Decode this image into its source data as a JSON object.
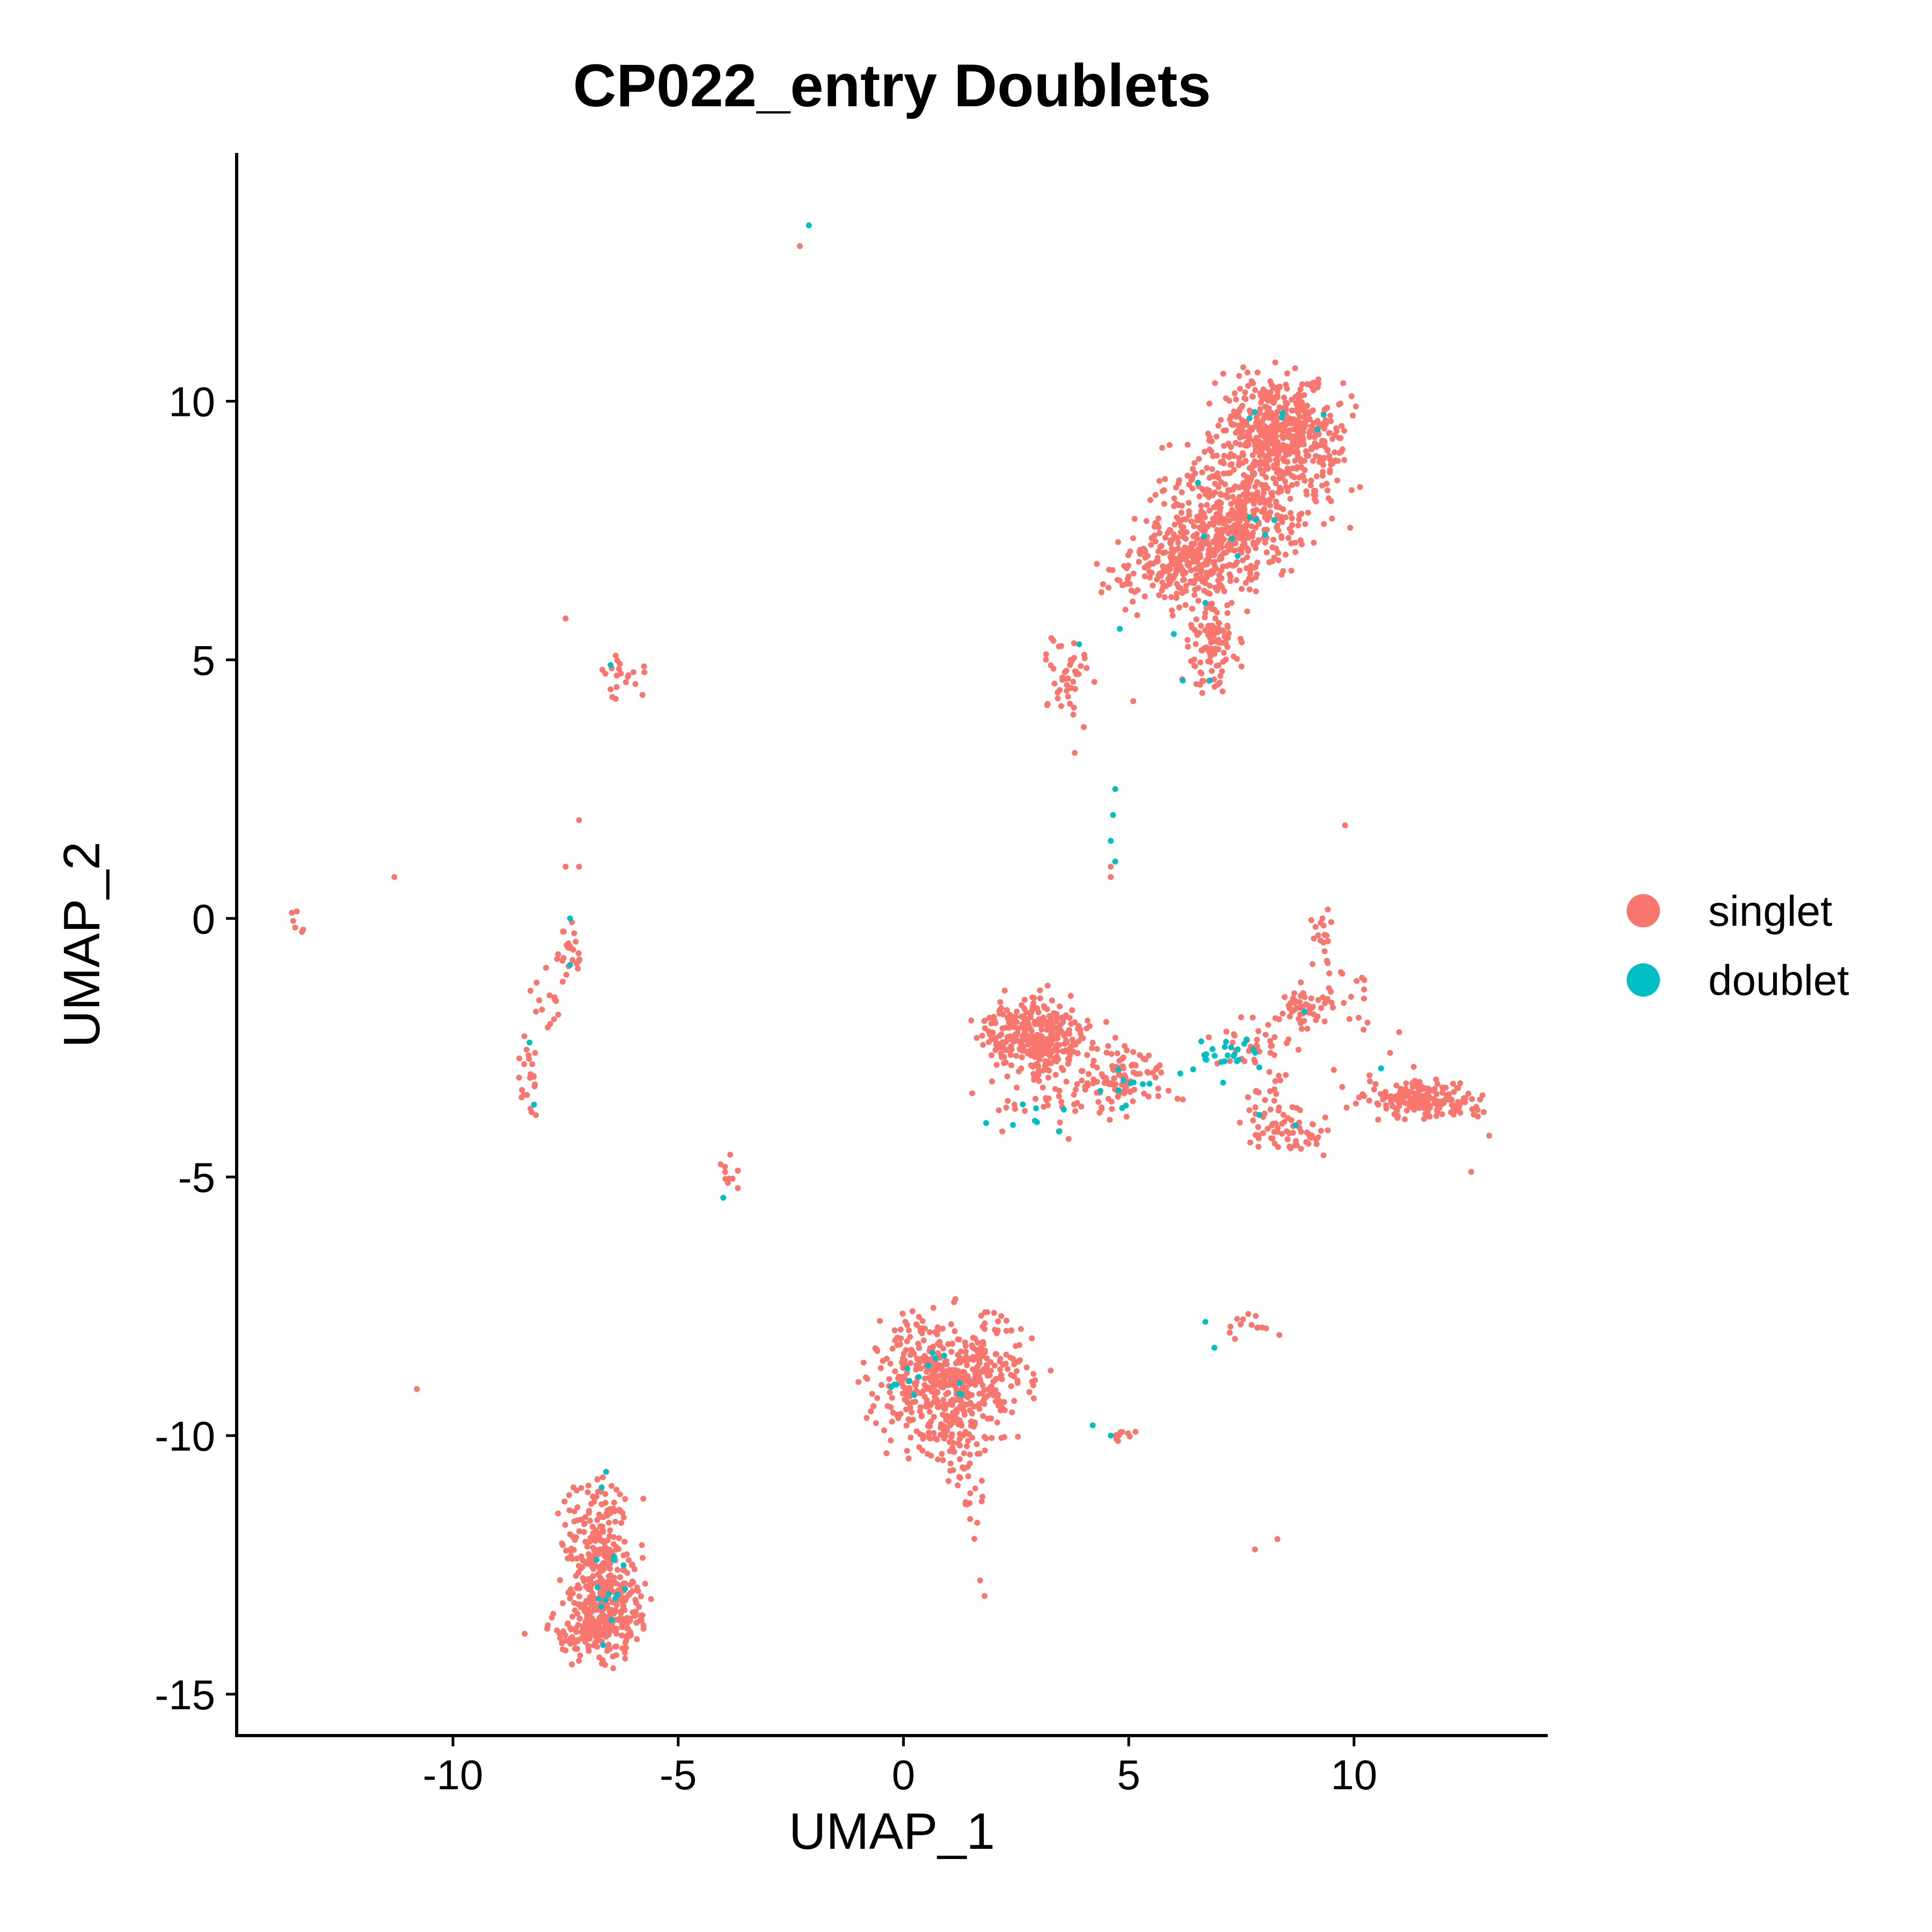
{
  "chart_data": {
    "type": "scatter",
    "title": "CP022_entry Doublets",
    "xlabel": "UMAP_1",
    "ylabel": "UMAP_2",
    "xlim": [
      -14.8,
      14.3
    ],
    "ylim": [
      -15.8,
      14.8
    ],
    "x_ticks": [
      -10,
      -5,
      0,
      5,
      10
    ],
    "y_ticks": [
      -15,
      -10,
      -5,
      0,
      5,
      10
    ],
    "x_tick_labels": [
      "-10",
      "-5",
      "0",
      "5",
      "10"
    ],
    "y_tick_labels": [
      "-15",
      "-10",
      "-5",
      "0",
      "5",
      "10"
    ],
    "grid": false,
    "legend_position": "right",
    "series": [
      {
        "name": "singlet",
        "color": "#F8766D",
        "clusters": [
          {
            "cx": 8.3,
            "cy": 9.4,
            "sx": 0.65,
            "sy": 0.55,
            "n": 520
          },
          {
            "cx": 7.3,
            "cy": 7.8,
            "sx": 0.75,
            "sy": 0.55,
            "n": 380
          },
          {
            "cx": 6.4,
            "cy": 6.9,
            "sx": 0.75,
            "sy": 0.45,
            "n": 280
          },
          {
            "cx": 6.8,
            "cy": 5.4,
            "sx": 0.3,
            "sy": 0.5,
            "n": 110
          },
          {
            "cx": 5.4,
            "cy": 6.5,
            "sx": 0.7,
            "sy": 0.3,
            "n": 30
          },
          {
            "cx": 9.2,
            "cy": 8.6,
            "sx": 0.4,
            "sy": 0.6,
            "n": 40
          },
          {
            "cx": 3.6,
            "cy": 4.7,
            "sx": 0.25,
            "sy": 0.35,
            "n": 45
          },
          {
            "cx": 2.9,
            "cy": -2.3,
            "sx": 0.55,
            "sy": 0.35,
            "n": 330
          },
          {
            "cx": 4.8,
            "cy": -3.1,
            "sx": 0.5,
            "sy": 0.35,
            "n": 110
          },
          {
            "cx": 3.0,
            "cy": -3.6,
            "sx": 0.6,
            "sy": 0.4,
            "n": 40
          },
          {
            "cx": 8.9,
            "cy": -1.7,
            "sx": 0.3,
            "sy": 0.2,
            "n": 55
          },
          {
            "cx": 7.8,
            "cy": -2.4,
            "sx": 0.45,
            "sy": 0.25,
            "n": 35
          },
          {
            "cx": 9.3,
            "cy": -0.6,
            "sx": 0.12,
            "sy": 0.4,
            "n": 18
          },
          {
            "cx": 9.8,
            "cy": -1.8,
            "sx": 0.25,
            "sy": 0.4,
            "n": 16
          },
          {
            "cx": 8.5,
            "cy": -4.1,
            "sx": 0.5,
            "sy": 0.25,
            "n": 60
          },
          {
            "cx": 8.2,
            "cy": -3.4,
            "sx": 0.3,
            "sy": 0.35,
            "n": 22
          },
          {
            "cx": 11.6,
            "cy": -3.5,
            "sx": 0.6,
            "sy": 0.18,
            "n": 190
          },
          {
            "cx": 10.4,
            "cy": -3.3,
            "sx": 0.4,
            "sy": 0.2,
            "n": 14
          },
          {
            "cx": 0.9,
            "cy": -8.9,
            "sx": 0.75,
            "sy": 0.6,
            "n": 520
          },
          {
            "cx": 1.3,
            "cy": -10.3,
            "sx": 0.3,
            "sy": 0.4,
            "n": 40
          },
          {
            "cx": 1.5,
            "cy": -11.3,
            "sx": 0.15,
            "sy": 0.4,
            "n": 14
          },
          {
            "cx": 2.4,
            "cy": -8.7,
            "sx": 0.35,
            "sy": 0.4,
            "n": 40
          },
          {
            "cx": -6.6,
            "cy": -13.4,
            "sx": 0.4,
            "sy": 0.45,
            "n": 300
          },
          {
            "cx": -6.8,
            "cy": -12.0,
            "sx": 0.4,
            "sy": 0.55,
            "n": 180
          },
          {
            "cx": -7.5,
            "cy": -13.8,
            "sx": 0.35,
            "sy": 0.2,
            "n": 35
          },
          {
            "cx": -6.3,
            "cy": 4.7,
            "sx": 0.3,
            "sy": 0.2,
            "n": 22
          },
          {
            "cx": -7.4,
            "cy": -0.7,
            "sx": 0.12,
            "sy": 0.35,
            "n": 26
          },
          {
            "cx": -7.9,
            "cy": -1.5,
            "sx": 0.25,
            "sy": 0.4,
            "n": 14
          },
          {
            "cx": -8.3,
            "cy": -3.0,
            "sx": 0.12,
            "sy": 0.5,
            "n": 22
          },
          {
            "cx": -3.9,
            "cy": -5.0,
            "sx": 0.1,
            "sy": 0.2,
            "n": 10
          },
          {
            "cx": -13.4,
            "cy": -0.1,
            "sx": 0.1,
            "sy": 0.1,
            "n": 6
          },
          {
            "cx": 4.9,
            "cy": -10.0,
            "sx": 0.2,
            "sy": 0.08,
            "n": 10
          },
          {
            "cx": 7.7,
            "cy": -7.9,
            "sx": 0.3,
            "sy": 0.12,
            "n": 14
          }
        ],
        "points": [
          [
            -2.3,
            13.0
          ],
          [
            -11.3,
            0.8
          ],
          [
            -7.5,
            5.8
          ],
          [
            -7.2,
            1.9
          ],
          [
            -7.5,
            1.0
          ],
          [
            -7.2,
            1.0
          ],
          [
            -10.8,
            -9.1
          ],
          [
            9.8,
            1.8
          ],
          [
            4.6,
            0.8
          ],
          [
            4.6,
            1.0
          ],
          [
            4.0,
            3.7
          ],
          [
            3.8,
            3.2
          ],
          [
            5.1,
            4.2
          ],
          [
            7.8,
            -12.2
          ],
          [
            8.3,
            -12.0
          ],
          [
            1.7,
            -12.8
          ],
          [
            1.8,
            -13.1
          ],
          [
            11.0,
            -2.2
          ],
          [
            12.6,
            -4.9
          ],
          [
            13.0,
            -4.2
          ],
          [
            3.2,
            -1.3
          ],
          [
            4.5,
            -2.0
          ],
          [
            6.2,
            -3.5
          ],
          [
            10.8,
            -2.6
          ]
        ]
      },
      {
        "name": "doublet",
        "color": "#00BFC4",
        "clusters": [
          {
            "cx": 7.1,
            "cy": -2.7,
            "sx": 0.45,
            "sy": 0.2,
            "n": 26
          },
          {
            "cx": 5.2,
            "cy": -3.2,
            "sx": 0.4,
            "sy": 0.25,
            "n": 10
          },
          {
            "cx": 3.0,
            "cy": -3.8,
            "sx": 0.5,
            "sy": 0.2,
            "n": 8
          },
          {
            "cx": 0.8,
            "cy": -8.9,
            "sx": 0.6,
            "sy": 0.4,
            "n": 14
          },
          {
            "cx": -6.5,
            "cy": -13.3,
            "sx": 0.3,
            "sy": 0.5,
            "n": 14
          },
          {
            "cx": 7.2,
            "cy": 7.5,
            "sx": 0.5,
            "sy": 0.5,
            "n": 8
          },
          {
            "cx": 8.4,
            "cy": 9.7,
            "sx": 0.5,
            "sy": 0.3,
            "n": 6
          }
        ],
        "points": [
          [
            -2.1,
            13.4
          ],
          [
            4.7,
            2.5
          ],
          [
            4.65,
            2.0
          ],
          [
            4.6,
            1.5
          ],
          [
            4.7,
            1.1
          ],
          [
            -7.4,
            0.0
          ],
          [
            -7.4,
            -0.9
          ],
          [
            -8.3,
            -2.4
          ],
          [
            -8.2,
            -3.6
          ],
          [
            -4.0,
            -5.4
          ],
          [
            -6.5,
            4.9
          ],
          [
            4.8,
            5.6
          ],
          [
            6.8,
            4.6
          ],
          [
            6.2,
            4.6
          ],
          [
            6.0,
            5.5
          ],
          [
            6.7,
            6.1
          ],
          [
            3.9,
            5.3
          ],
          [
            4.2,
            -9.8
          ],
          [
            4.6,
            -10.0
          ],
          [
            6.9,
            -8.3
          ],
          [
            6.7,
            -7.8
          ],
          [
            -6.6,
            -10.7
          ],
          [
            -6.7,
            -11.0
          ],
          [
            8.9,
            -1.8
          ],
          [
            10.6,
            -2.9
          ],
          [
            7.9,
            -3.8
          ],
          [
            8.7,
            -4.0
          ]
        ]
      }
    ]
  }
}
